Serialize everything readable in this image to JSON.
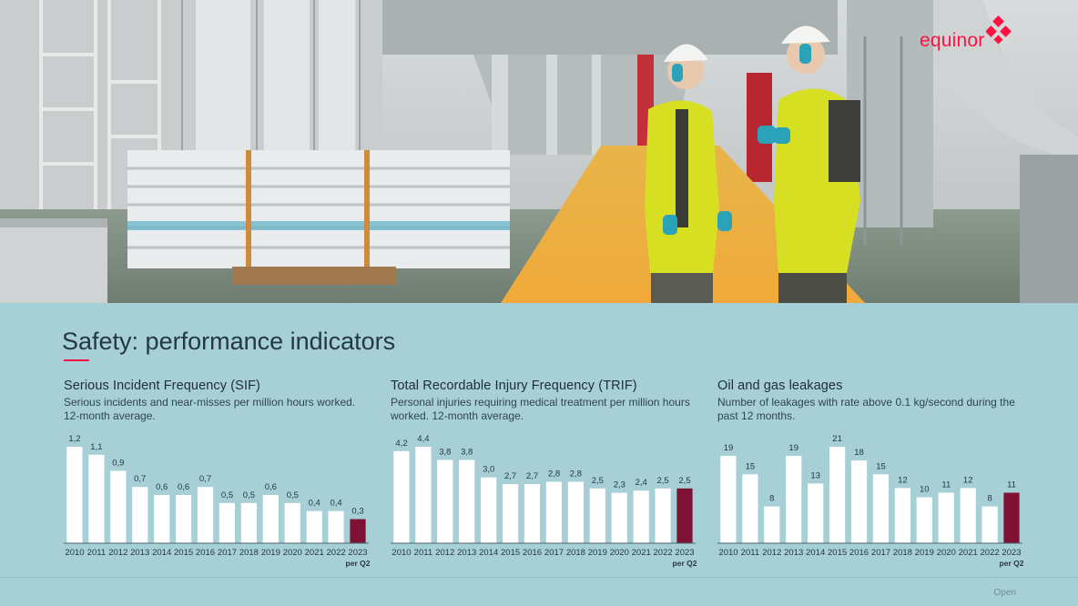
{
  "brand": {
    "name": "equinor",
    "accent": "#ff1243"
  },
  "page_title": "Safety: performance indicators",
  "footer_label": "Open",
  "colors": {
    "bar": "#ffffff",
    "highlight_bar": "#7d1235",
    "axis": "#4a6470",
    "text": "#243746"
  },
  "chart_data": [
    {
      "type": "bar",
      "title": "Serious Incident Frequency (SIF)",
      "subtitle": "Serious incidents and near-misses per million hours worked. 12-month average.",
      "categories": [
        "2010",
        "2011",
        "2012",
        "2013",
        "2014",
        "2015",
        "2016",
        "2017",
        "2018",
        "2019",
        "2020",
        "2021",
        "2022",
        "2023"
      ],
      "category_sublabel": {
        "2023": "per Q2"
      },
      "values": [
        1.2,
        1.1,
        0.9,
        0.7,
        0.6,
        0.6,
        0.7,
        0.5,
        0.5,
        0.6,
        0.5,
        0.4,
        0.4,
        0.3
      ],
      "value_labels": [
        "1,2",
        "1,1",
        "0,9",
        "0,7",
        "0,6",
        "0,6",
        "0,7",
        "0,5",
        "0,5",
        "0,6",
        "0,5",
        "0,4",
        "0,4",
        "0,3"
      ],
      "highlight_index": 13,
      "ylim": [
        0,
        1.2
      ],
      "grid": false
    },
    {
      "type": "bar",
      "title": "Total Recordable Injury Frequency (TRIF)",
      "subtitle": "Personal injuries requiring medical treatment per million hours worked. 12-month average.",
      "categories": [
        "2010",
        "2011",
        "2012",
        "2013",
        "2014",
        "2015",
        "2016",
        "2017",
        "2018",
        "2019",
        "2020",
        "2021",
        "2022",
        "2023"
      ],
      "category_sublabel": {
        "2023": "per Q2"
      },
      "values": [
        4.2,
        4.4,
        3.8,
        3.8,
        3.0,
        2.7,
        2.7,
        2.8,
        2.8,
        2.5,
        2.3,
        2.4,
        2.5,
        2.5
      ],
      "value_labels": [
        "4,2",
        "4,4",
        "3,8",
        "3,8",
        "3,0",
        "2,7",
        "2,7",
        "2,8",
        "2,8",
        "2,5",
        "2,3",
        "2,4",
        "2,5",
        "2,5"
      ],
      "highlight_index": 13,
      "ylim": [
        0,
        4.4
      ],
      "grid": false
    },
    {
      "type": "bar",
      "title": "Oil and gas leakages",
      "subtitle": "Number of leakages with rate above 0.1 kg/second during the past 12 months.",
      "categories": [
        "2010",
        "2011",
        "2012",
        "2013",
        "2014",
        "2015",
        "2016",
        "2017",
        "2018",
        "2019",
        "2020",
        "2021",
        "2022",
        "2023"
      ],
      "category_sublabel": {
        "2023": "per Q2"
      },
      "values": [
        19,
        15,
        8,
        19,
        13,
        21,
        18,
        15,
        12,
        10,
        11,
        12,
        8,
        11
      ],
      "value_labels": [
        "19",
        "15",
        "8",
        "19",
        "13",
        "21",
        "18",
        "15",
        "12",
        "10",
        "11",
        "12",
        "8",
        "11"
      ],
      "highlight_index": 13,
      "ylim": [
        0,
        21
      ],
      "grid": false
    }
  ]
}
